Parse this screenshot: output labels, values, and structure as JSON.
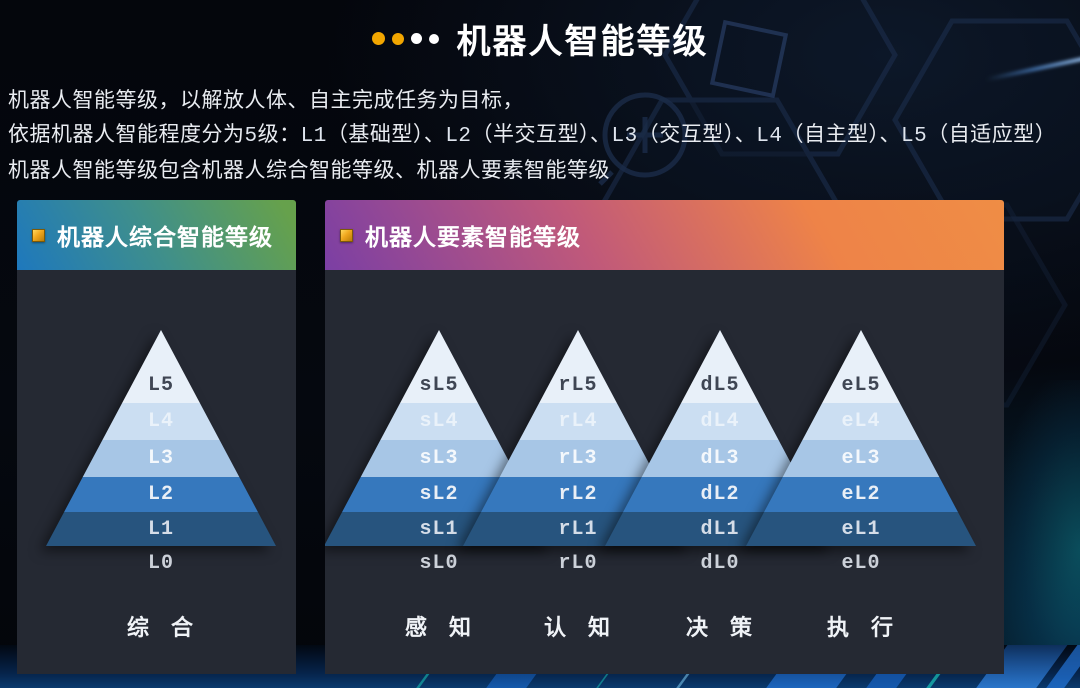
{
  "header": {
    "title": "机器人智能等级",
    "dots": [
      "gold",
      "gold",
      "white",
      "white"
    ]
  },
  "intro": {
    "line1": "机器人智能等级，以解放人体、自主完成任务为目标，",
    "line2_segments": [
      {
        "text": "依据机器人智能程度分为",
        "mono": false
      },
      {
        "text": "5",
        "mono": true
      },
      {
        "text": "级：",
        "mono": false
      },
      {
        "text": "L1",
        "mono": true
      },
      {
        "text": "（基础型）、",
        "mono": false
      },
      {
        "text": "L2",
        "mono": true
      },
      {
        "text": "（半交互型）、",
        "mono": false
      },
      {
        "text": "L3",
        "mono": true
      },
      {
        "text": "（交互型）、",
        "mono": false
      },
      {
        "text": "L4",
        "mono": true
      },
      {
        "text": "（自主型）、",
        "mono": false
      },
      {
        "text": "L5",
        "mono": true
      },
      {
        "text": "（自适应型）",
        "mono": false
      }
    ],
    "line3": "机器人智能等级包含机器人综合智能等级、机器人要素智能等级"
  },
  "panels": {
    "comprehensive": {
      "header": "机器人综合智能等级",
      "icon": "gold-square-bullet-icon",
      "pyramids": [
        {
          "levels": [
            "L5",
            "L4",
            "L3",
            "L2",
            "L1"
          ],
          "base": "L0",
          "category": "综 合"
        }
      ]
    },
    "elements": {
      "header": "机器人要素智能等级",
      "icon": "gold-square-bullet-icon",
      "pyramids": [
        {
          "levels": [
            "sL5",
            "sL4",
            "sL3",
            "sL2",
            "sL1"
          ],
          "base": "sL0",
          "category": "感 知"
        },
        {
          "levels": [
            "rL5",
            "rL4",
            "rL3",
            "rL2",
            "rL1"
          ],
          "base": "rL0",
          "category": "认 知"
        },
        {
          "levels": [
            "dL5",
            "dL4",
            "dL3",
            "dL2",
            "dL1"
          ],
          "base": "dL0",
          "category": "决 策"
        },
        {
          "levels": [
            "eL5",
            "eL4",
            "eL3",
            "eL2",
            "eL1"
          ],
          "base": "eL0",
          "category": "执 行"
        }
      ]
    }
  },
  "colors": {
    "band_colors": [
      "#e8f0f9",
      "#cbdef2",
      "#a7c6e6",
      "#3678bd",
      "#27547e"
    ],
    "accent_gold": "#f2a600",
    "comprehensive_header_gradient": [
      "#1e78bd",
      "#66a14c"
    ],
    "elements_header_gradient": [
      "#7b3fa4",
      "#ee8348"
    ],
    "panel_body_background": "#252933"
  }
}
